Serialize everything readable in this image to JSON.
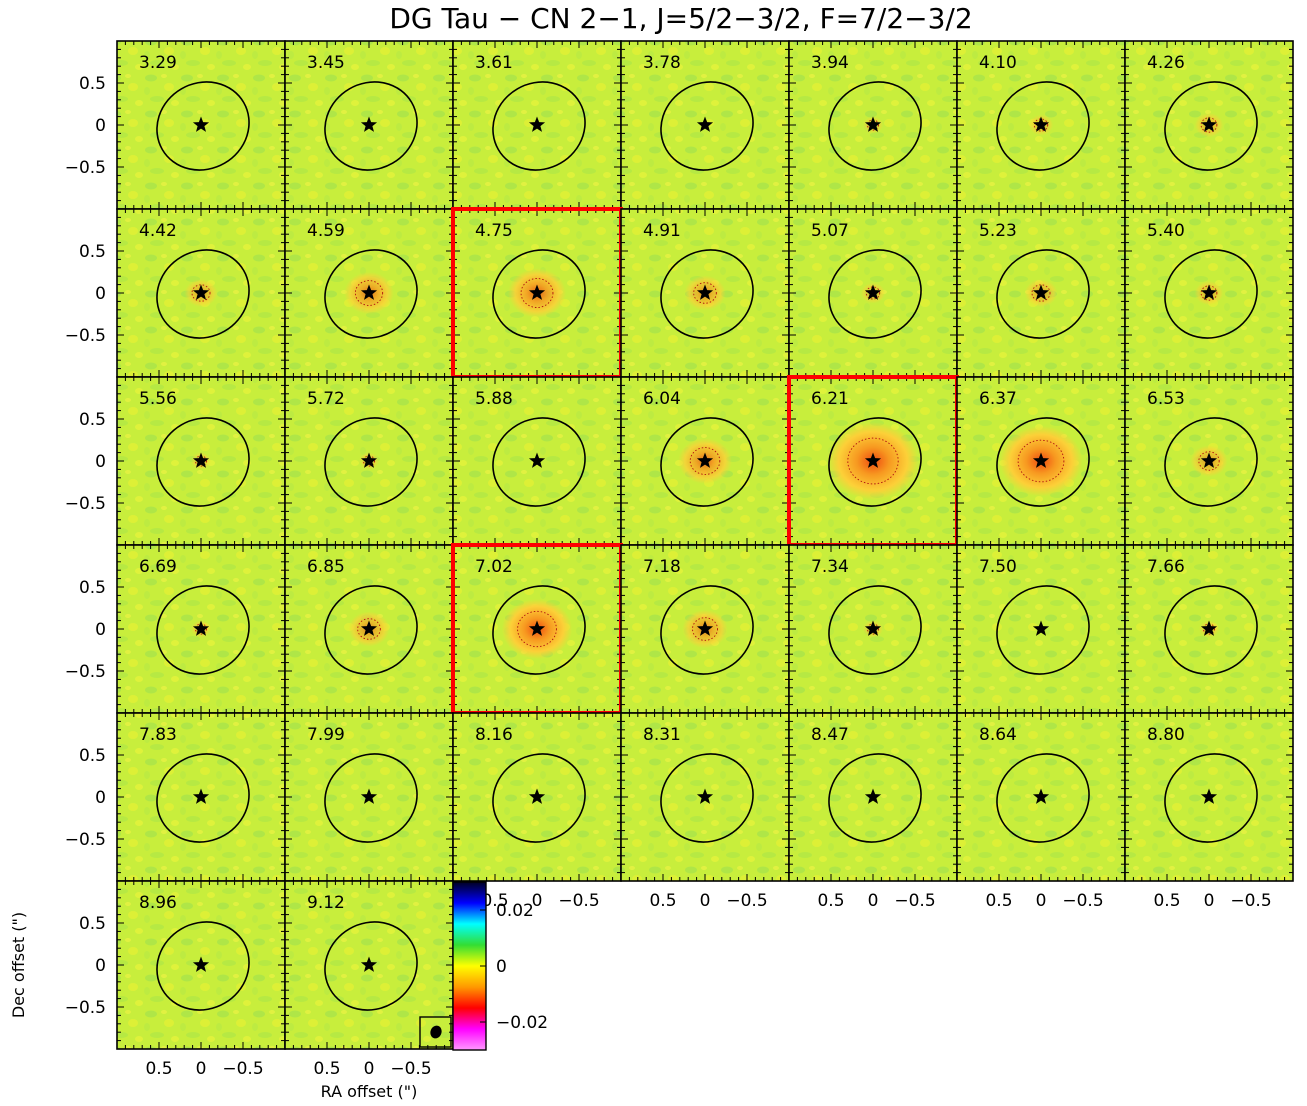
{
  "chart_data": {
    "type": "heatmap",
    "title": "DG Tau − CN 2−1, J=5/2−3/2, F=7/2−3/2",
    "xlabel": "RA offset (\")",
    "ylabel": "Dec offset (\")",
    "xlim": [
      1.0,
      -1.0
    ],
    "ylim": [
      -1.0,
      1.0
    ],
    "x_ticks": [
      0.5,
      0,
      -0.5
    ],
    "x_tick_labels": [
      "0.5",
      "0",
      "−0.5"
    ],
    "y_ticks": [
      0.5,
      0,
      -0.5
    ],
    "y_tick_labels": [
      "0.5",
      "0",
      "−0.5"
    ],
    "colorbar": {
      "range": [
        -0.03,
        0.03
      ],
      "ticks": [
        0.02,
        0,
        -0.02
      ],
      "tick_labels": [
        "0.02",
        "0",
        "−0.02"
      ],
      "colors": [
        "#ff99ff",
        "#ff00ff",
        "#ff0000",
        "#ff9900",
        "#ffff00",
        "#33dd33",
        "#00ffff",
        "#0000ff",
        "#000022"
      ]
    },
    "background_color": "#c8ee3c",
    "highlight_color": "#ff0000",
    "channels": [
      {
        "label": "3.29",
        "intensity": 0.0,
        "highlight": false
      },
      {
        "label": "3.45",
        "intensity": 0.0,
        "highlight": false
      },
      {
        "label": "3.61",
        "intensity": 0.0,
        "highlight": false
      },
      {
        "label": "3.78",
        "intensity": 0.0,
        "highlight": false
      },
      {
        "label": "3.94",
        "intensity": 0.05,
        "highlight": false
      },
      {
        "label": "4.10",
        "intensity": 0.1,
        "highlight": false
      },
      {
        "label": "4.26",
        "intensity": 0.15,
        "highlight": false
      },
      {
        "label": "4.42",
        "intensity": 0.2,
        "highlight": false
      },
      {
        "label": "4.59",
        "intensity": 0.4,
        "highlight": false
      },
      {
        "label": "4.75",
        "intensity": 0.5,
        "highlight": true
      },
      {
        "label": "4.91",
        "intensity": 0.3,
        "highlight": false
      },
      {
        "label": "5.07",
        "intensity": 0.1,
        "highlight": false
      },
      {
        "label": "5.23",
        "intensity": 0.2,
        "highlight": false
      },
      {
        "label": "5.40",
        "intensity": 0.15,
        "highlight": false
      },
      {
        "label": "5.56",
        "intensity": 0.05,
        "highlight": false
      },
      {
        "label": "5.72",
        "intensity": 0.05,
        "highlight": false
      },
      {
        "label": "5.88",
        "intensity": 0.0,
        "highlight": false
      },
      {
        "label": "6.04",
        "intensity": 0.45,
        "highlight": false
      },
      {
        "label": "6.21",
        "intensity": 0.9,
        "highlight": true
      },
      {
        "label": "6.37",
        "intensity": 0.8,
        "highlight": false
      },
      {
        "label": "6.53",
        "intensity": 0.25,
        "highlight": false
      },
      {
        "label": "6.69",
        "intensity": 0.05,
        "highlight": false
      },
      {
        "label": "6.85",
        "intensity": 0.3,
        "highlight": false
      },
      {
        "label": "7.02",
        "intensity": 0.65,
        "highlight": true
      },
      {
        "label": "7.18",
        "intensity": 0.35,
        "highlight": false
      },
      {
        "label": "7.34",
        "intensity": 0.05,
        "highlight": false
      },
      {
        "label": "7.50",
        "intensity": 0.0,
        "highlight": false
      },
      {
        "label": "7.66",
        "intensity": 0.05,
        "highlight": false
      },
      {
        "label": "7.83",
        "intensity": 0.0,
        "highlight": false
      },
      {
        "label": "7.99",
        "intensity": 0.0,
        "highlight": false
      },
      {
        "label": "8.16",
        "intensity": 0.0,
        "highlight": false
      },
      {
        "label": "8.31",
        "intensity": 0.0,
        "highlight": false
      },
      {
        "label": "8.47",
        "intensity": 0.0,
        "highlight": false
      },
      {
        "label": "8.64",
        "intensity": 0.0,
        "highlight": false
      },
      {
        "label": "8.80",
        "intensity": 0.0,
        "highlight": false
      },
      {
        "label": "8.96",
        "intensity": 0.0,
        "highlight": false
      },
      {
        "label": "9.12",
        "intensity": 0.0,
        "highlight": false
      }
    ]
  }
}
